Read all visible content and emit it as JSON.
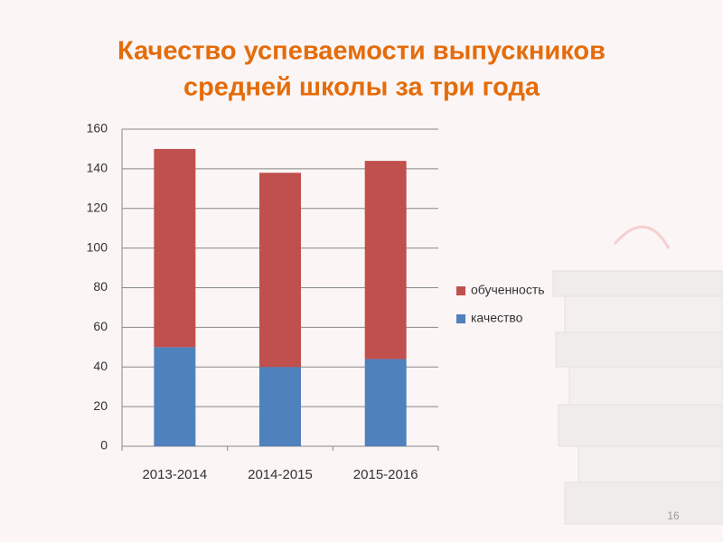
{
  "chart_data": {
    "type": "stacked_bar",
    "title": [
      "Качество успеваемости  выпускников",
      "средней школы за три года"
    ],
    "categories": [
      "2013-2014",
      "2014-2015",
      "2015-2016"
    ],
    "series": [
      {
        "name": "качество",
        "color": "#4f81bd",
        "values": [
          50,
          40,
          44
        ]
      },
      {
        "name": "обученность",
        "color": "#c0504d",
        "values": [
          100,
          98,
          100
        ]
      }
    ],
    "ylim": [
      0,
      160
    ],
    "yticks": [
      0,
      20,
      40,
      60,
      80,
      100,
      120,
      140,
      160
    ],
    "grid": true,
    "legend": "right"
  },
  "page_number": "16"
}
